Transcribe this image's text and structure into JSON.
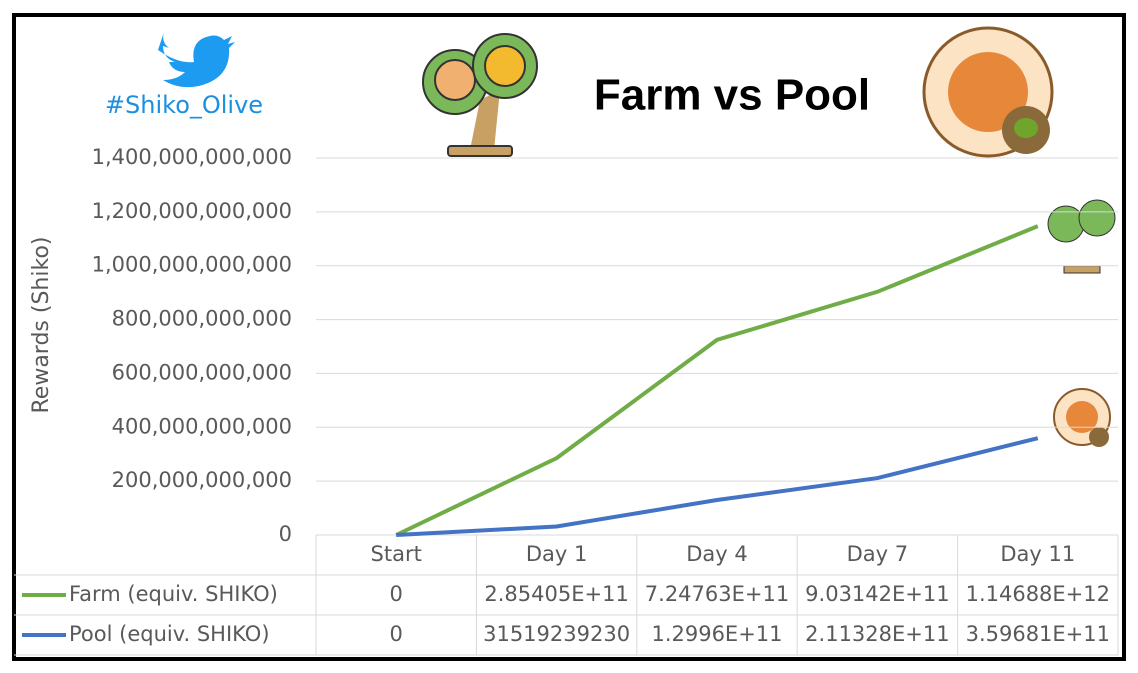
{
  "hashtag": "#Shiko_Olive",
  "chart_data": {
    "type": "line",
    "title": "Farm vs Pool",
    "y_label": "Rewards (Shiko)",
    "categories": [
      "Start",
      "Day 1",
      "Day 4",
      "Day 7",
      "Day 11"
    ],
    "series": [
      {
        "name": "Farm (equiv. SHIKO)",
        "color": "#70ad47",
        "values": [
          0,
          285405000000,
          724763000000,
          903142000000,
          1146880000000
        ],
        "value_labels": [
          "0",
          "2.85405E+11",
          "7.24763E+11",
          "9.03142E+11",
          "1.14688E+12"
        ]
      },
      {
        "name": "Pool (equiv. SHIKO)",
        "color": "#4472c4",
        "values": [
          0,
          31519239230,
          129960000000,
          211328000000,
          359681000000
        ],
        "value_labels": [
          "0",
          "31519239230",
          "1.2996E+11",
          "2.11328E+11",
          "3.59681E+11"
        ]
      }
    ],
    "ylim": [
      0,
      1400000000000
    ],
    "yticks": [
      0,
      {
        "value": 200000000000,
        "label": "200,000,000,000"
      },
      {
        "value": 400000000000,
        "label": "400,000,000,000"
      },
      {
        "value": 600000000000,
        "label": "600,000,000,000"
      },
      {
        "value": 800000000000,
        "label": "800,000,000,000"
      },
      {
        "value": 1000000000000,
        "label": "1,000,000,000,000"
      },
      {
        "value": 1200000000000,
        "label": "1,200,000,000,000"
      },
      {
        "value": 1400000000000,
        "label": "1,400,000,000,000"
      }
    ],
    "grid": true
  }
}
